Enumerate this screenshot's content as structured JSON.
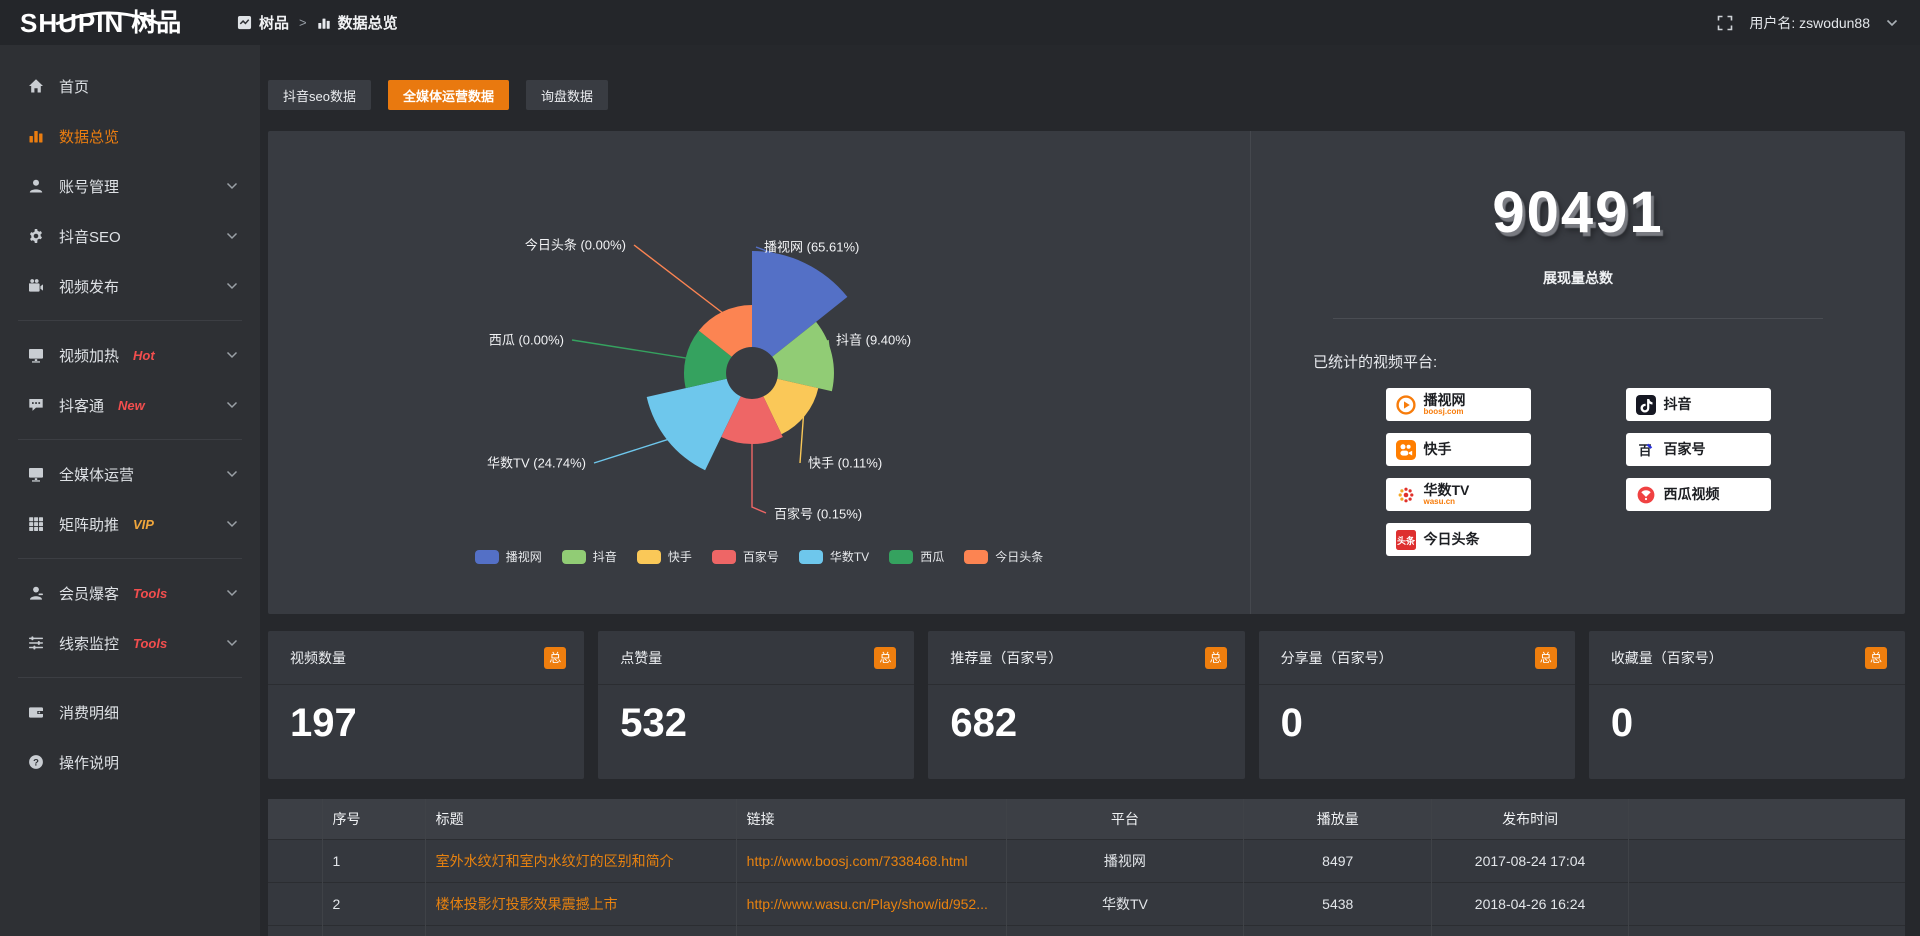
{
  "accent_color": "#ea7d10",
  "header": {
    "logo_en": "SHUPIN",
    "logo_cn": "树品",
    "breadcrumb_root": "树品",
    "breadcrumb_sep": ">",
    "breadcrumb_current": "数据总览",
    "username_prefix": "用户名:",
    "username": "zswodun88",
    "icons": [
      "shupin-logo-icon",
      "bar-chart-icon",
      "fullscreen-icon",
      "chevron-down-icon"
    ]
  },
  "sidebar": {
    "groups": [
      {
        "items": [
          {
            "label": "首页",
            "icon": "home-icon",
            "chevron": false,
            "active": false,
            "badge": null
          },
          {
            "label": "数据总览",
            "icon": "bar-chart-icon",
            "chevron": false,
            "active": true,
            "badge": null
          },
          {
            "label": "账号管理",
            "icon": "user-icon",
            "chevron": true,
            "active": false,
            "badge": null
          },
          {
            "label": "抖音SEO",
            "icon": "gear-icon",
            "chevron": true,
            "active": false,
            "badge": null
          },
          {
            "label": "视频发布",
            "icon": "video-camera-icon",
            "chevron": true,
            "active": false,
            "badge": null
          }
        ]
      },
      {
        "items": [
          {
            "label": "视频加热",
            "icon": "monitor-play-icon",
            "chevron": true,
            "active": false,
            "badge": {
              "text": "Hot",
              "color": "#f34e4e"
            }
          },
          {
            "label": "抖客通",
            "icon": "chat-bubble-icon",
            "chevron": true,
            "active": false,
            "badge": {
              "text": "New",
              "color": "#f34e4e"
            }
          }
        ]
      },
      {
        "items": [
          {
            "label": "全媒体运营",
            "icon": "monitor-icon",
            "chevron": true,
            "active": false,
            "badge": null
          },
          {
            "label": "矩阵助推",
            "icon": "grid-icon",
            "chevron": true,
            "active": false,
            "badge": {
              "text": "VIP",
              "color": "#f0a63c"
            }
          }
        ]
      },
      {
        "items": [
          {
            "label": "会员爆客",
            "icon": "member-icon",
            "chevron": true,
            "active": false,
            "badge": {
              "text": "Tools",
              "color": "#f34e4e"
            }
          },
          {
            "label": "线索监控",
            "icon": "sliders-icon",
            "chevron": true,
            "active": false,
            "badge": {
              "text": "Tools",
              "color": "#f34e4e"
            }
          }
        ]
      },
      {
        "items": [
          {
            "label": "消费明细",
            "icon": "wallet-icon",
            "chevron": false,
            "active": false,
            "badge": null
          },
          {
            "label": "操作说明",
            "icon": "question-circle-icon",
            "chevron": false,
            "active": false,
            "badge": null
          }
        ]
      }
    ]
  },
  "tabs": [
    {
      "label": "抖音seo数据",
      "active": false
    },
    {
      "label": "全媒体运营数据",
      "active": true
    },
    {
      "label": "询盘数据",
      "active": false
    }
  ],
  "chart_data": {
    "type": "pie",
    "subtype": "nightingale-rose",
    "title": "",
    "legend_position": "bottom",
    "inner_radius": 26,
    "series": [
      {
        "name": "播视网",
        "percent": 65.61,
        "color": "#5470c6",
        "radius": 122
      },
      {
        "name": "抖音",
        "percent": 9.4,
        "color": "#91cc75",
        "radius": 82
      },
      {
        "name": "快手",
        "percent": 0.11,
        "color": "#fac858",
        "radius": 68
      },
      {
        "name": "百家号",
        "percent": 0.15,
        "color": "#ee6666",
        "radius": 71
      },
      {
        "name": "华数TV",
        "percent": 24.74,
        "color": "#6ec7ec",
        "radius": 108
      },
      {
        "name": "西瓜",
        "percent": 0.0,
        "color": "#35a25f",
        "radius": 68
      },
      {
        "name": "今日头条",
        "percent": 0.0,
        "color": "#fc8452",
        "radius": 68
      }
    ]
  },
  "summary": {
    "total_value": "90491",
    "total_label": "展现量总数",
    "platforms_label": "已统计的视频平台:",
    "platform_columns": [
      [
        {
          "name": "播视网",
          "sub": "boosj.com",
          "icon": "boosj-play-icon"
        },
        {
          "name": "快手",
          "sub": "",
          "icon": "kuaishou-icon"
        },
        {
          "name": "华数TV",
          "sub": "wasu.cn",
          "icon": "wasu-star-icon"
        },
        {
          "name": "今日头条",
          "sub": "",
          "icon": "toutiao-icon"
        }
      ],
      [
        {
          "name": "抖音",
          "sub": "",
          "icon": "douyin-note-icon"
        },
        {
          "name": "百家号",
          "sub": "",
          "icon": "baijiahao-icon"
        },
        {
          "name": "西瓜视频",
          "sub": "",
          "icon": "xigua-icon"
        }
      ]
    ]
  },
  "stat_cards": [
    {
      "label": "视频数量",
      "badge": "总",
      "value": "197"
    },
    {
      "label": "点赞量",
      "badge": "总",
      "value": "532"
    },
    {
      "label": "推荐量（百家号）",
      "badge": "总",
      "value": "682"
    },
    {
      "label": "分享量（百家号）",
      "badge": "总",
      "value": "0"
    },
    {
      "label": "收藏量（百家号）",
      "badge": "总",
      "value": "0"
    }
  ],
  "table": {
    "headers": [
      "",
      "序号",
      "标题",
      "链接",
      "平台",
      "播放量",
      "发布时间",
      ""
    ],
    "rows": [
      {
        "index": "1",
        "title": "室外水纹灯和室内水纹灯的区别和简介",
        "link": "http://www.boosj.com/7338468.html",
        "platform": "播视网",
        "plays": "8497",
        "published": "2017-08-24 17:04"
      },
      {
        "index": "2",
        "title": "楼体投影灯投影效果震撼上市",
        "link": "http://www.wasu.cn/Play/show/id/952...",
        "platform": "华数TV",
        "plays": "5438",
        "published": "2018-04-26 16:24"
      },
      {
        "index": "",
        "title": "",
        "link": "",
        "platform": "",
        "plays": "",
        "published": ""
      }
    ]
  }
}
